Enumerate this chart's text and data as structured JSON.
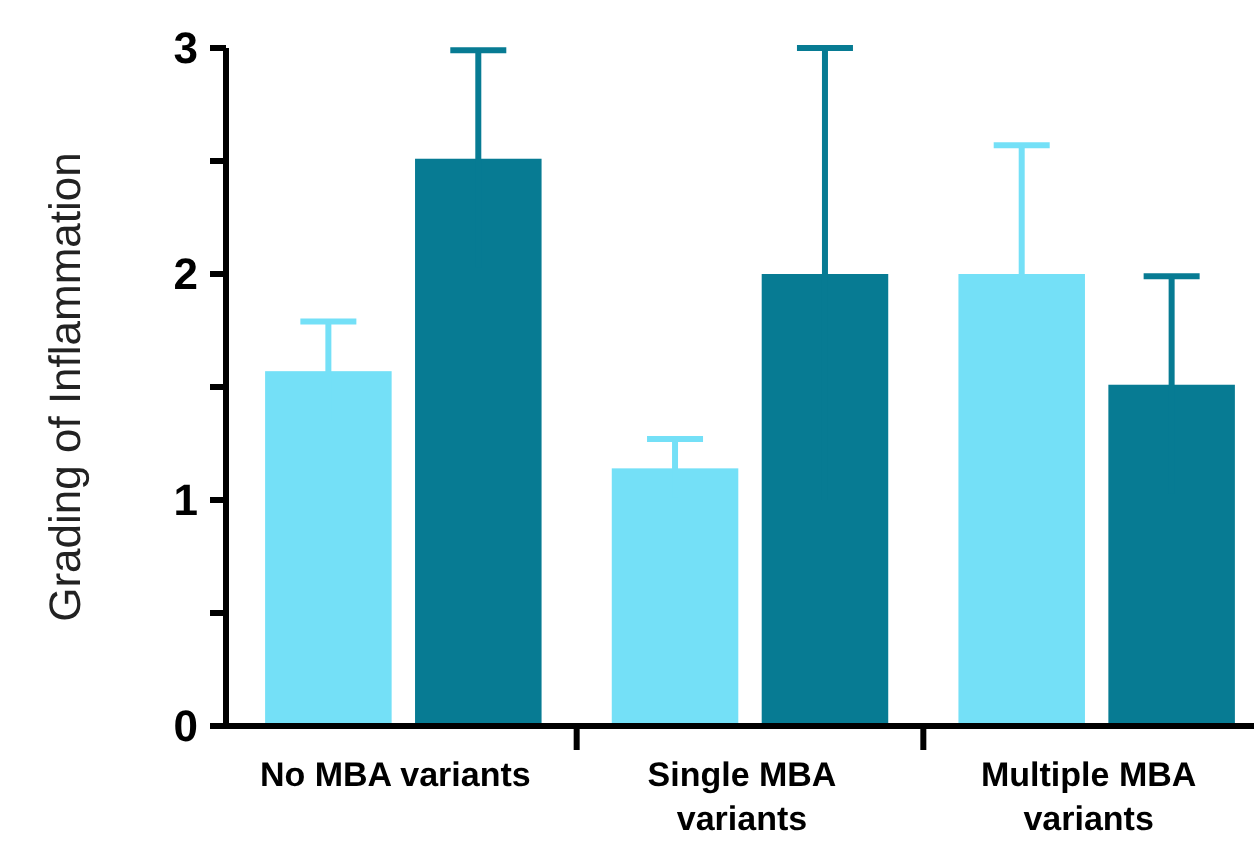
{
  "chart_data": {
    "type": "bar",
    "ylabel": "Grading of Inflammation",
    "categories": [
      "No MBA variants",
      "Single MBA variants",
      "Multiple MBA variants"
    ],
    "series": [
      {
        "color": "#74e0f7",
        "values": [
          1.57,
          1.14,
          2.0
        ],
        "errors": [
          0.22,
          0.13,
          0.57
        ]
      },
      {
        "color": "#077b93",
        "values": [
          2.51,
          2.0,
          1.51
        ],
        "errors": [
          0.48,
          1.0,
          0.48
        ]
      }
    ],
    "ylim": [
      0,
      3
    ],
    "yticks": [
      0,
      {
        "value": 0.5,
        "label": null
      },
      1,
      {
        "value": 1.5,
        "label": null
      },
      2,
      {
        "value": 2.5,
        "label": null
      },
      3
    ],
    "grid": false
  }
}
